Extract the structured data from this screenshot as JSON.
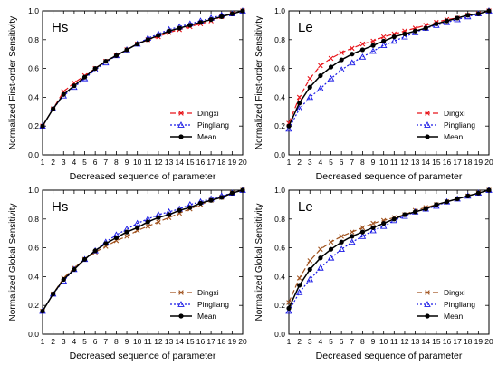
{
  "figure": {},
  "chart_data": [
    {
      "type": "line",
      "panel_label": "Hs",
      "xlabel": "Decreased sequence of parameter",
      "ylabel": "Normalized First-order Sensitivity",
      "xlim": [
        1,
        20
      ],
      "ylim": [
        0,
        1
      ],
      "x": [
        1,
        2,
        3,
        4,
        5,
        6,
        7,
        8,
        9,
        10,
        11,
        12,
        13,
        14,
        15,
        16,
        17,
        18,
        19,
        20
      ],
      "xticks": [
        "1",
        "2",
        "3",
        "4",
        "5",
        "6",
        "7",
        "8",
        "9",
        "10",
        "11",
        "12",
        "13",
        "14",
        "15",
        "16",
        "17",
        "18",
        "19",
        "20"
      ],
      "yticks": [
        "0.0",
        "0.2",
        "0.4",
        "0.6",
        "0.8",
        "1.0"
      ],
      "legend_position": "bottom-right",
      "series": [
        {
          "name": "Dingxi",
          "color": "#e8141a",
          "dash": "6,3",
          "marker": "x",
          "values": [
            0.2,
            0.32,
            0.44,
            0.5,
            0.55,
            0.6,
            0.65,
            0.69,
            0.73,
            0.77,
            0.8,
            0.82,
            0.85,
            0.87,
            0.89,
            0.91,
            0.93,
            0.96,
            0.98,
            1.0
          ]
        },
        {
          "name": "Pingliang",
          "color": "#1a1ae6",
          "dash": "2,2",
          "marker": "triangle",
          "values": [
            0.2,
            0.32,
            0.41,
            0.47,
            0.53,
            0.59,
            0.64,
            0.69,
            0.73,
            0.77,
            0.81,
            0.84,
            0.87,
            0.89,
            0.91,
            0.93,
            0.95,
            0.97,
            0.98,
            1.0
          ]
        },
        {
          "name": "Mean",
          "color": "#000000",
          "dash": "",
          "marker": "circle",
          "values": [
            0.2,
            0.32,
            0.42,
            0.48,
            0.54,
            0.6,
            0.65,
            0.69,
            0.73,
            0.77,
            0.8,
            0.83,
            0.86,
            0.88,
            0.9,
            0.92,
            0.94,
            0.96,
            0.98,
            1.0
          ]
        }
      ]
    },
    {
      "type": "line",
      "panel_label": "Le",
      "xlabel": "Decreased sequence of parameter",
      "ylabel": "Normalized First-order Sensitivity",
      "xlim": [
        1,
        20
      ],
      "ylim": [
        0,
        1
      ],
      "x": [
        1,
        2,
        3,
        4,
        5,
        6,
        7,
        8,
        9,
        10,
        11,
        12,
        13,
        14,
        15,
        16,
        17,
        18,
        19,
        20
      ],
      "xticks": [
        "1",
        "2",
        "3",
        "4",
        "5",
        "6",
        "7",
        "8",
        "9",
        "10",
        "11",
        "12",
        "13",
        "14",
        "15",
        "16",
        "17",
        "18",
        "19",
        "20"
      ],
      "yticks": [
        "0.0",
        "0.2",
        "0.4",
        "0.6",
        "0.8",
        "1.0"
      ],
      "legend_position": "bottom-right",
      "series": [
        {
          "name": "Dingxi",
          "color": "#e8141a",
          "dash": "6,3",
          "marker": "x",
          "values": [
            0.22,
            0.4,
            0.53,
            0.62,
            0.67,
            0.71,
            0.74,
            0.77,
            0.79,
            0.82,
            0.84,
            0.86,
            0.88,
            0.9,
            0.92,
            0.94,
            0.95,
            0.97,
            0.98,
            1.0
          ]
        },
        {
          "name": "Pingliang",
          "color": "#1a1ae6",
          "dash": "2,2",
          "marker": "triangle",
          "values": [
            0.18,
            0.32,
            0.4,
            0.46,
            0.53,
            0.59,
            0.64,
            0.68,
            0.72,
            0.76,
            0.79,
            0.82,
            0.85,
            0.88,
            0.9,
            0.92,
            0.94,
            0.96,
            0.98,
            1.0
          ]
        },
        {
          "name": "Mean",
          "color": "#000000",
          "dash": "",
          "marker": "circle",
          "values": [
            0.2,
            0.36,
            0.47,
            0.55,
            0.61,
            0.66,
            0.7,
            0.73,
            0.76,
            0.79,
            0.82,
            0.84,
            0.86,
            0.88,
            0.91,
            0.93,
            0.95,
            0.97,
            0.98,
            1.0
          ]
        }
      ]
    },
    {
      "type": "line",
      "panel_label": "Hs",
      "xlabel": "Decreased sequence of parameter",
      "ylabel": "Normalized Global Sensitivity",
      "xlim": [
        1,
        20
      ],
      "ylim": [
        0,
        1
      ],
      "x": [
        1,
        2,
        3,
        4,
        5,
        6,
        7,
        8,
        9,
        10,
        11,
        12,
        13,
        14,
        15,
        16,
        17,
        18,
        19,
        20
      ],
      "xticks": [
        "1",
        "2",
        "3",
        "4",
        "5",
        "6",
        "7",
        "8",
        "9",
        "10",
        "11",
        "12",
        "13",
        "14",
        "15",
        "16",
        "17",
        "18",
        "19",
        "20"
      ],
      "yticks": [
        "0.0",
        "0.2",
        "0.4",
        "0.6",
        "0.8",
        "1.0"
      ],
      "legend_position": "bottom-right",
      "series": [
        {
          "name": "Dingxi",
          "color": "#a0521e",
          "dash": "6,3",
          "marker": "x",
          "values": [
            0.16,
            0.28,
            0.39,
            0.46,
            0.52,
            0.57,
            0.61,
            0.65,
            0.68,
            0.72,
            0.75,
            0.78,
            0.81,
            0.84,
            0.87,
            0.9,
            0.93,
            0.95,
            0.98,
            1.0
          ]
        },
        {
          "name": "Pingliang",
          "color": "#1a1ae6",
          "dash": "2,2",
          "marker": "triangle",
          "values": [
            0.16,
            0.28,
            0.37,
            0.45,
            0.52,
            0.58,
            0.64,
            0.69,
            0.73,
            0.77,
            0.8,
            0.83,
            0.85,
            0.87,
            0.9,
            0.92,
            0.94,
            0.96,
            0.98,
            1.0
          ]
        },
        {
          "name": "Mean",
          "color": "#000000",
          "dash": "",
          "marker": "circle",
          "values": [
            0.16,
            0.28,
            0.38,
            0.45,
            0.52,
            0.58,
            0.63,
            0.67,
            0.71,
            0.74,
            0.78,
            0.81,
            0.83,
            0.86,
            0.88,
            0.91,
            0.93,
            0.95,
            0.98,
            1.0
          ]
        }
      ]
    },
    {
      "type": "line",
      "panel_label": "Le",
      "xlabel": "Decreased sequence of parameter",
      "ylabel": "Normalized Global Sensitivity",
      "xlim": [
        1,
        20
      ],
      "ylim": [
        0,
        1
      ],
      "x": [
        1,
        2,
        3,
        4,
        5,
        6,
        7,
        8,
        9,
        10,
        11,
        12,
        13,
        14,
        15,
        16,
        17,
        18,
        19,
        20
      ],
      "xticks": [
        "1",
        "2",
        "3",
        "4",
        "5",
        "6",
        "7",
        "8",
        "9",
        "10",
        "11",
        "12",
        "13",
        "14",
        "15",
        "16",
        "17",
        "18",
        "19",
        "20"
      ],
      "yticks": [
        "0.0",
        "0.2",
        "0.4",
        "0.6",
        "0.8",
        "1.0"
      ],
      "legend_position": "bottom-right",
      "series": [
        {
          "name": "Dingxi",
          "color": "#a0521e",
          "dash": "6,3",
          "marker": "x",
          "values": [
            0.22,
            0.39,
            0.51,
            0.59,
            0.64,
            0.68,
            0.71,
            0.74,
            0.77,
            0.79,
            0.81,
            0.83,
            0.86,
            0.88,
            0.9,
            0.92,
            0.94,
            0.96,
            0.98,
            1.0
          ]
        },
        {
          "name": "Pingliang",
          "color": "#1a1ae6",
          "dash": "2,2",
          "marker": "triangle",
          "values": [
            0.16,
            0.29,
            0.38,
            0.46,
            0.53,
            0.59,
            0.64,
            0.68,
            0.72,
            0.75,
            0.79,
            0.82,
            0.85,
            0.87,
            0.89,
            0.92,
            0.94,
            0.96,
            0.98,
            1.0
          ]
        },
        {
          "name": "Mean",
          "color": "#000000",
          "dash": "",
          "marker": "circle",
          "values": [
            0.18,
            0.34,
            0.45,
            0.53,
            0.59,
            0.64,
            0.68,
            0.71,
            0.74,
            0.77,
            0.8,
            0.83,
            0.85,
            0.87,
            0.9,
            0.92,
            0.94,
            0.96,
            0.98,
            1.0
          ]
        }
      ]
    }
  ]
}
